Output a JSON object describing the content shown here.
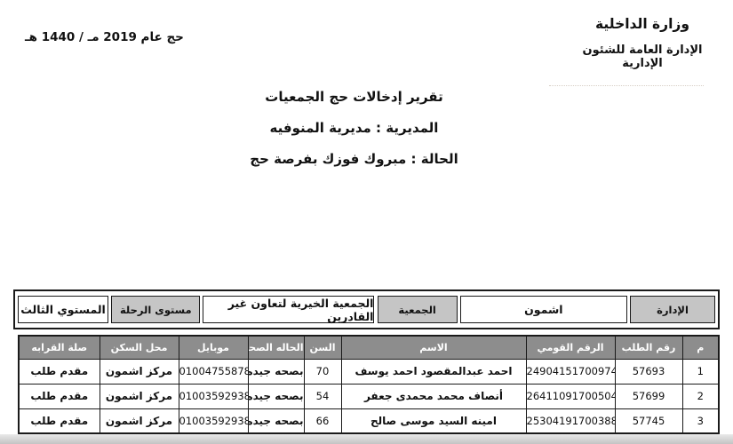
{
  "letterhead": {
    "ministry_line1": "وزارة الداخلية",
    "ministry_line2": "الإدارة العامة للشئون الإدارية",
    "year_line": "حج عام 2019 مـ / 1440 هـ"
  },
  "titles": {
    "report_title": "تقرير إدخالات حج الجمعيات",
    "directorate_line": "المديرية : مديرية المنوفيه",
    "status_line": "الحالة : مبروك فوزك بفرصة حج"
  },
  "info_bar": {
    "admin_label": "الإدارة",
    "admin_value": "اشمون",
    "association_label": "الجمعية",
    "association_value": "الجمعية الخيرية لتعاون غير القادرين",
    "trip_level_label": "مستوى الرحلة",
    "trip_level_value": "المستوي الثالث"
  },
  "table": {
    "headers": [
      "م",
      "رقم الطلب",
      "الرقم القومي",
      "الاسم",
      "السن",
      "الحاله الصحيه",
      "موبايل",
      "محل السكن",
      "صلة القرابه"
    ],
    "rows": [
      [
        "1",
        "57693",
        "24904151700974",
        "احمد عبدالمقصود احمد يوسف",
        "70",
        "بصحه جيده",
        "01004755878",
        "مركز اشمون",
        "مقدم طلب"
      ],
      [
        "2",
        "57699",
        "26411091700504",
        "أنصاف محمد محمدى جعفر",
        "54",
        "بصحه جيده",
        "01003592938",
        "مركز اشمون",
        "مقدم طلب"
      ],
      [
        "3",
        "57745",
        "25304191700388",
        "امينه السيد موسى صالح",
        "66",
        "بصحه جيده",
        "01003592938",
        "مركز اشمون",
        "مقدم طلب"
      ]
    ]
  },
  "colors": {
    "table_header_gray": "#8d8d8d",
    "label_gray": "#c5c5c5",
    "border_black": "#1a1a1a"
  }
}
